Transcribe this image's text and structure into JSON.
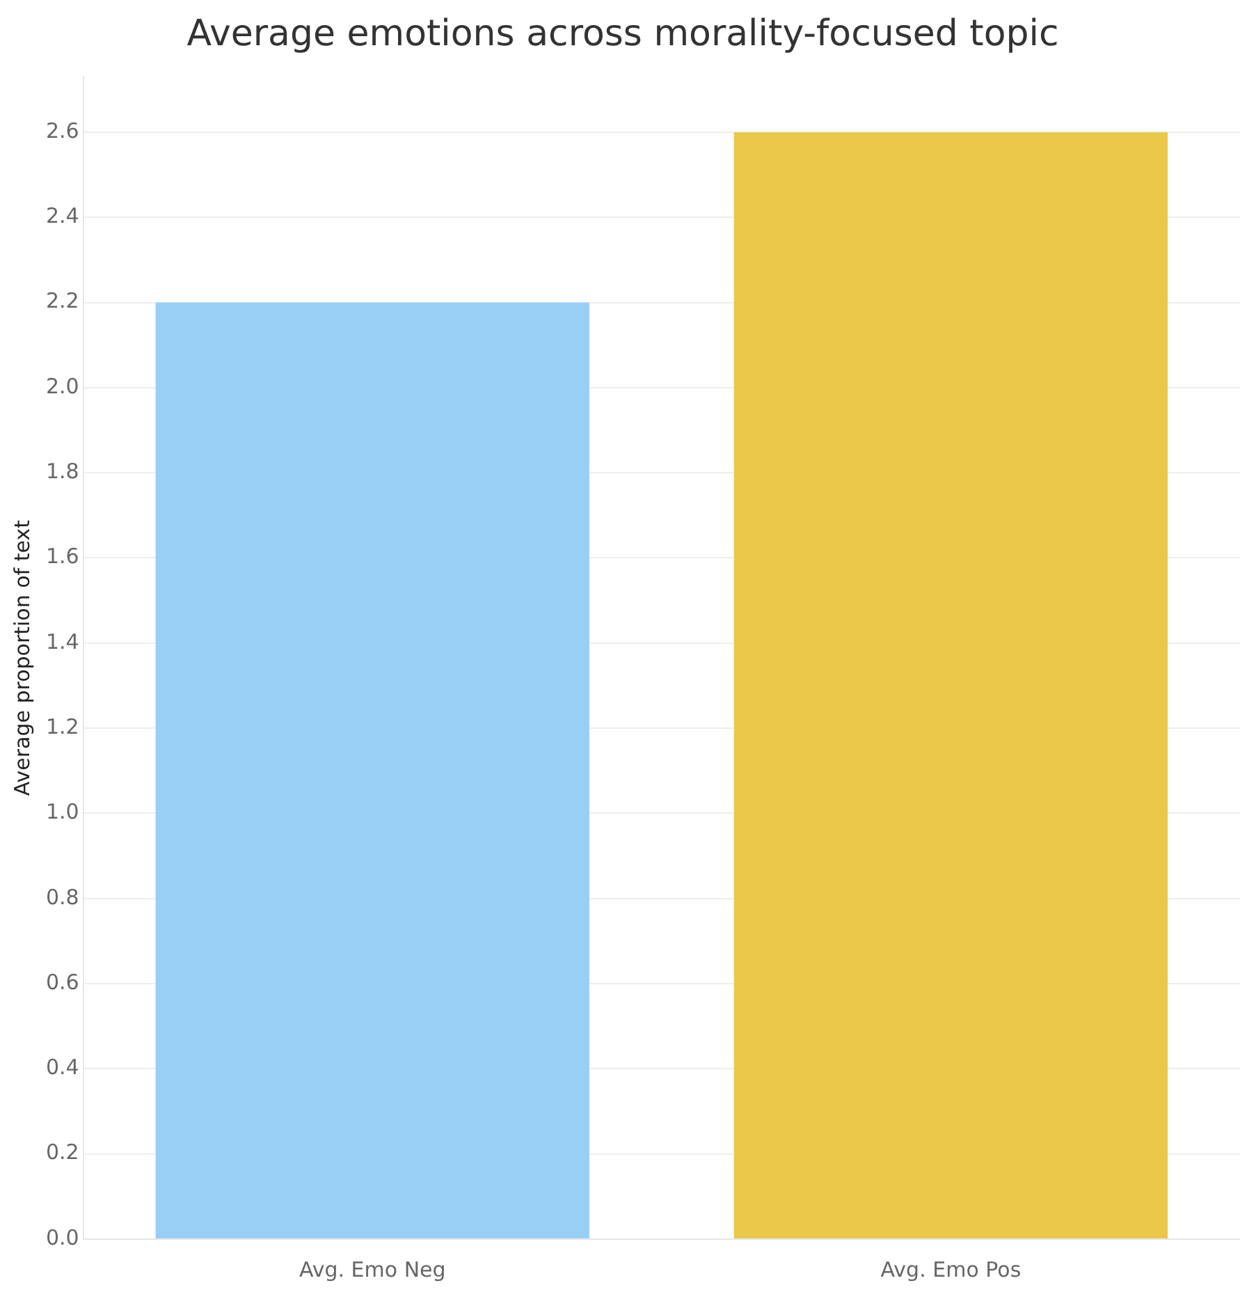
{
  "chart_data": {
    "type": "bar",
    "title": "Average emotions across morality-focused topic",
    "ylabel": "Average proportion of text",
    "categories": [
      "Avg. Emo Neg",
      "Avg. Emo Pos"
    ],
    "values": [
      2.2,
      2.6
    ],
    "colors": [
      "#99cff5",
      "#eac849"
    ],
    "ylim": [
      0,
      2.73
    ],
    "yticks": [
      {
        "value": 0,
        "label": "0.0"
      },
      0.2,
      0.4,
      0.6,
      0.8,
      {
        "value": 1,
        "label": "1.0"
      },
      1.2,
      1.4,
      1.6,
      1.8,
      {
        "value": 2,
        "label": "2.0"
      },
      2.2,
      2.4,
      2.6
    ],
    "grid": "y",
    "legend": false
  }
}
